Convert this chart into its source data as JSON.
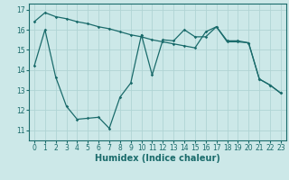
{
  "xlabel": "Humidex (Indice chaleur)",
  "x_values": [
    0,
    1,
    2,
    3,
    4,
    5,
    6,
    7,
    8,
    9,
    10,
    11,
    12,
    13,
    14,
    15,
    16,
    17,
    18,
    19,
    20,
    21,
    22,
    23
  ],
  "line1_y": [
    16.4,
    16.85,
    16.65,
    16.55,
    16.4,
    16.3,
    16.15,
    16.05,
    15.9,
    15.75,
    15.65,
    15.5,
    15.4,
    15.3,
    15.2,
    15.1,
    15.9,
    16.15,
    15.45,
    15.45,
    15.35,
    13.55,
    13.25,
    12.85
  ],
  "line2_y": [
    14.2,
    16.0,
    13.65,
    12.2,
    11.55,
    11.6,
    11.65,
    11.1,
    12.65,
    13.35,
    15.75,
    13.75,
    15.5,
    15.45,
    16.0,
    15.65,
    15.65,
    16.15,
    15.4,
    15.4,
    15.35,
    13.55,
    13.25,
    12.85
  ],
  "bg_color": "#cce8e8",
  "grid_color": "#b0d4d4",
  "line_color": "#1a6b6b",
  "ylim": [
    10.5,
    17.3
  ],
  "yticks": [
    11,
    12,
    13,
    14,
    15,
    16,
    17
  ],
  "xticks": [
    0,
    1,
    2,
    3,
    4,
    5,
    6,
    7,
    8,
    9,
    10,
    11,
    12,
    13,
    14,
    15,
    16,
    17,
    18,
    19,
    20,
    21,
    22,
    23
  ],
  "xlabel_fontsize": 7,
  "tick_fontsize": 5.5
}
